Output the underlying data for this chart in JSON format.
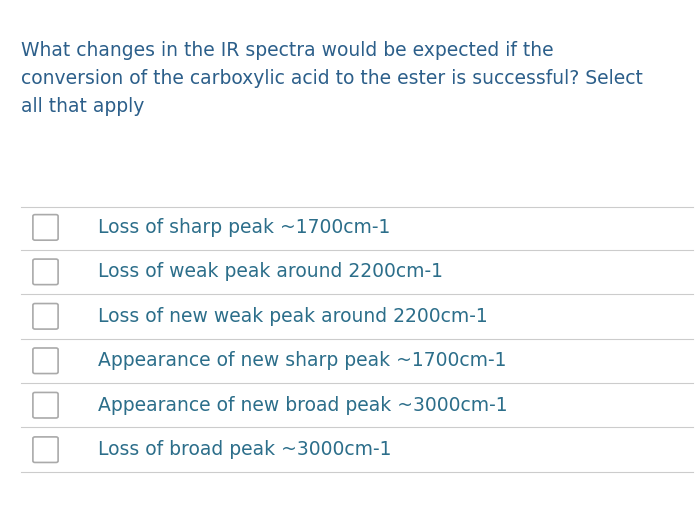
{
  "question": "What changes in the IR spectra would be expected if the\nconversion of the carboxylic acid to the ester is successful? Select\nall that apply",
  "options": [
    "Loss of sharp peak ~1700cm-1",
    "Loss of weak peak around 2200cm-1",
    "Loss of new weak peak around 2200cm-1",
    "Appearance of new sharp peak ~1700cm-1",
    "Appearance of new broad peak ~3000cm-1",
    "Loss of broad peak ~3000cm-1"
  ],
  "background_color": "#ffffff",
  "question_color": "#2c5f8a",
  "option_color": "#2c6e8a",
  "line_color": "#cccccc",
  "checkbox_edge_color": "#aaaaaa",
  "question_fontsize": 13.5,
  "option_fontsize": 13.5
}
